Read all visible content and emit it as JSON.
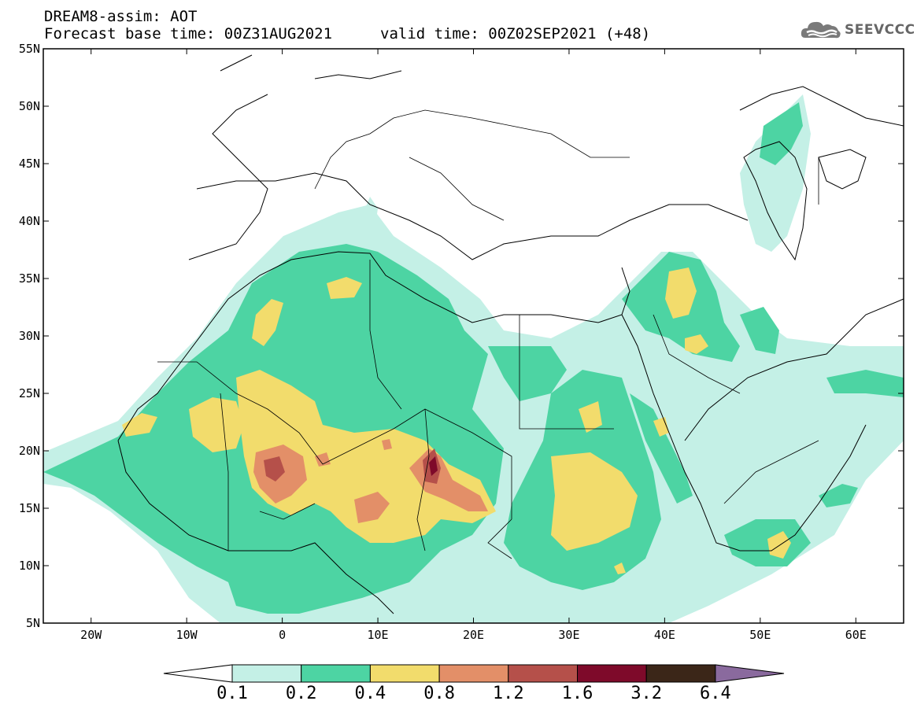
{
  "header": {
    "title": "DREAM8-assim: AOT",
    "base_time": "Forecast base time: 00Z31AUG2021",
    "valid_time": "valid time: 00Z02SEP2021 (+48)"
  },
  "logo": {
    "text": "SEEVCCC",
    "icon": "cloud-icon"
  },
  "map": {
    "lon_range": [
      -25,
      65
    ],
    "lat_range": [
      5,
      55
    ],
    "lat_labels": [
      "55N",
      "50N",
      "45N",
      "40N",
      "35N",
      "30N",
      "25N",
      "20N",
      "15N",
      "10N",
      "5N"
    ],
    "lon_labels": [
      "20W",
      "10W",
      "0",
      "10E",
      "20E",
      "30E",
      "40E",
      "50E",
      "60E"
    ]
  },
  "colorbar": {
    "labels": [
      "0.1",
      "0.2",
      "0.4",
      "0.8",
      "1.2",
      "1.6",
      "3.2",
      "6.4"
    ],
    "colors": [
      "#ffffff",
      "#c4f0e6",
      "#4dd4a3",
      "#f2dc6c",
      "#e38f68",
      "#b5504a",
      "#7e0a2a",
      "#3b2618",
      "#8a6a9e"
    ]
  }
}
